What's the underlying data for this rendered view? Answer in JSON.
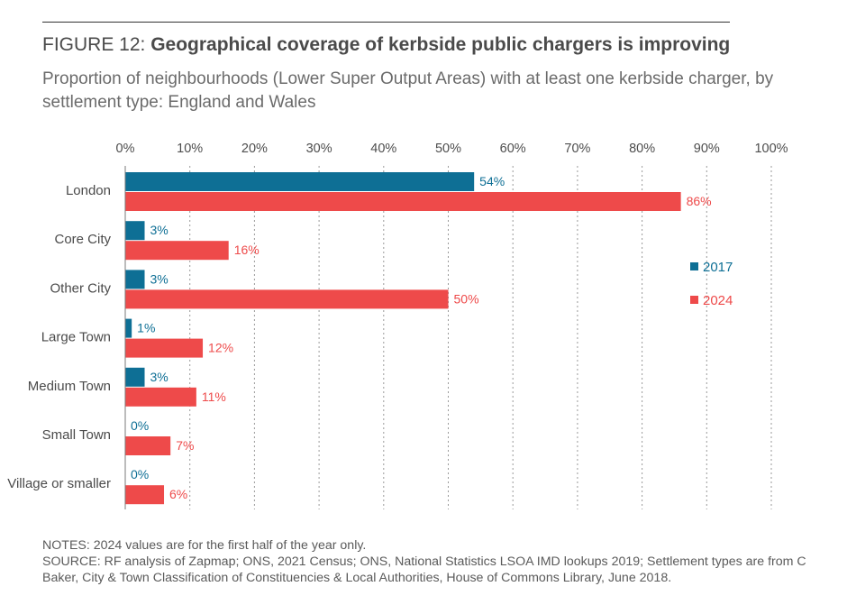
{
  "header": {
    "figure_label": "FIGURE 12: ",
    "title": "Geographical coverage of kerbside public chargers is improving",
    "subtitle": "Proportion of neighbourhoods (Lower Super Output Areas) with at least one kerbside charger, by settlement type: England and Wales"
  },
  "chart_data": {
    "type": "bar",
    "orientation": "horizontal",
    "categories": [
      "London",
      "Core City",
      "Other City",
      "Large Town",
      "Medium Town",
      "Small Town",
      "Village or smaller"
    ],
    "series": [
      {
        "name": "2017",
        "color": "#0e6f95",
        "values": [
          54,
          3,
          3,
          1,
          3,
          0,
          0
        ]
      },
      {
        "name": "2024",
        "color": "#ee4a4a",
        "values": [
          86,
          16,
          50,
          12,
          11,
          7,
          6
        ]
      }
    ],
    "xlim": [
      0,
      100
    ],
    "x_ticks": [
      "0%",
      "10%",
      "20%",
      "30%",
      "40%",
      "50%",
      "60%",
      "70%",
      "80%",
      "90%",
      "100%"
    ],
    "value_suffix": "%",
    "grid": "vertical dashed",
    "legend_position": "right"
  },
  "footer": {
    "notes": "NOTES: 2024 values are for the first half of the year only.",
    "source": "SOURCE: RF analysis of Zapmap; ONS, 2021 Census; ONS, National Statistics LSOA IMD lookups 2019; Settlement types are from C Baker, City & Town Classification of Constituencies & Local Authorities, House of Commons Library, June 2018."
  }
}
